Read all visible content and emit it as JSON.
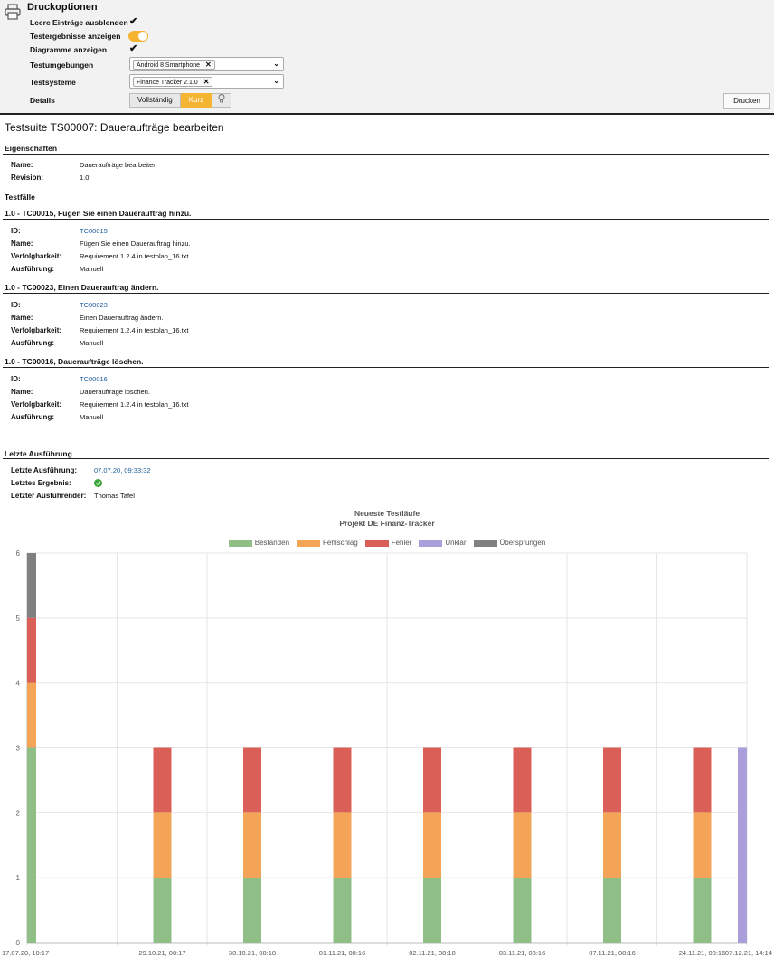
{
  "options": {
    "title": "Druckoptionen",
    "hide_empty_label": "Leere Einträge ausblenden",
    "show_results_label": "Testergebnisse anzeigen",
    "show_charts_label": "Diagramme anzeigen",
    "environments_label": "Testumgebungen",
    "environments_value": "Android 8 Smartphone",
    "systems_label": "Testsysteme",
    "systems_value": "Finance Tracker 2.1.0",
    "details_label": "Details",
    "details_full": "Vollständig",
    "details_short": "Kurz",
    "print_button": "Drucken",
    "accent_color": "#f5b431"
  },
  "suite": {
    "title": "Testsuite TS00007: Daueraufträge bearbeiten",
    "properties_heading": "Eigenschaften",
    "name_label": "Name:",
    "name_value": "Daueraufträge bearbeiten",
    "revision_label": "Revision:",
    "revision_value": "1.0",
    "testcases_heading": "Testfälle"
  },
  "cases": [
    {
      "heading": "1.0 - TC00015, Fügen Sie einen Dauerauftrag hinzu.",
      "id_label": "ID:",
      "id": "TC00015",
      "name_label": "Name:",
      "name": "Fügen Sie einen Dauerauftrag hinzu.",
      "trace_label": "Verfolgbarkeit:",
      "trace": "Requirement 1.2.4 in testplan_16.txt",
      "exec_label": "Ausführung:",
      "exec": "Manuell"
    },
    {
      "heading": "1.0 - TC00023, Einen Dauerauftrag ändern.",
      "id_label": "ID:",
      "id": "TC00023",
      "name_label": "Name:",
      "name": "Einen Dauerauftrag ändern.",
      "trace_label": "Verfolgbarkeit:",
      "trace": "Requirement 1.2.4 in testplan_16.txt",
      "exec_label": "Ausführung:",
      "exec": "Manuell"
    },
    {
      "heading": "1.0 - TC00016, Daueraufträge löschen.",
      "id_label": "ID:",
      "id": "TC00016",
      "name_label": "Name:",
      "name": "Daueraufträge löschen.",
      "trace_label": "Verfolgbarkeit:",
      "trace": "Requirement 1.2.4 in testplan_16.txt",
      "exec_label": "Ausführung:",
      "exec": "Manuell"
    }
  ],
  "last_run": {
    "heading": "Letzte Ausführung",
    "date_label": "Letzte Ausführung:",
    "date_value": "07.07.20, 09:33:32",
    "result_label": "Letztes Ergebnis:",
    "result_icon": "check-circle-icon",
    "executor_label": "Letzter Ausführender:",
    "executor_value": "Thomas Tafel"
  },
  "chart_data": {
    "type": "bar",
    "stacked": true,
    "title": "Neueste Testläufe",
    "subtitle": "Projekt DE Finanz-Tracker",
    "legend_position": "top",
    "categories": [
      "17.07.20, 10:17",
      "29.10.21, 08:17",
      "30.10.21, 08:18",
      "01.11.21, 08:16",
      "02.11.21, 08:18",
      "03.11.21, 08:16",
      "07.11.21, 08:16",
      "24.11.21, 08:16",
      "07.12.21, 14:14"
    ],
    "series": [
      {
        "name": "Bestanden",
        "color": "#8fbf87",
        "values": [
          3,
          1,
          1,
          1,
          1,
          1,
          1,
          1,
          0
        ]
      },
      {
        "name": "Fehlschlag",
        "color": "#f4a457",
        "values": [
          1,
          1,
          1,
          1,
          1,
          1,
          1,
          1,
          0
        ]
      },
      {
        "name": "Fehler",
        "color": "#d95f57",
        "values": [
          1,
          1,
          1,
          1,
          1,
          1,
          1,
          1,
          0
        ]
      },
      {
        "name": "Unklar",
        "color": "#ab9fdb",
        "values": [
          0,
          0,
          0,
          0,
          0,
          0,
          0,
          0,
          3
        ]
      },
      {
        "name": "Übersprungen",
        "color": "#808080",
        "values": [
          1,
          0,
          0,
          0,
          0,
          0,
          0,
          0,
          0
        ]
      }
    ],
    "ylim": [
      0,
      6
    ],
    "yticks": [
      0,
      1,
      2,
      3,
      4,
      5,
      6
    ],
    "grid": true
  }
}
